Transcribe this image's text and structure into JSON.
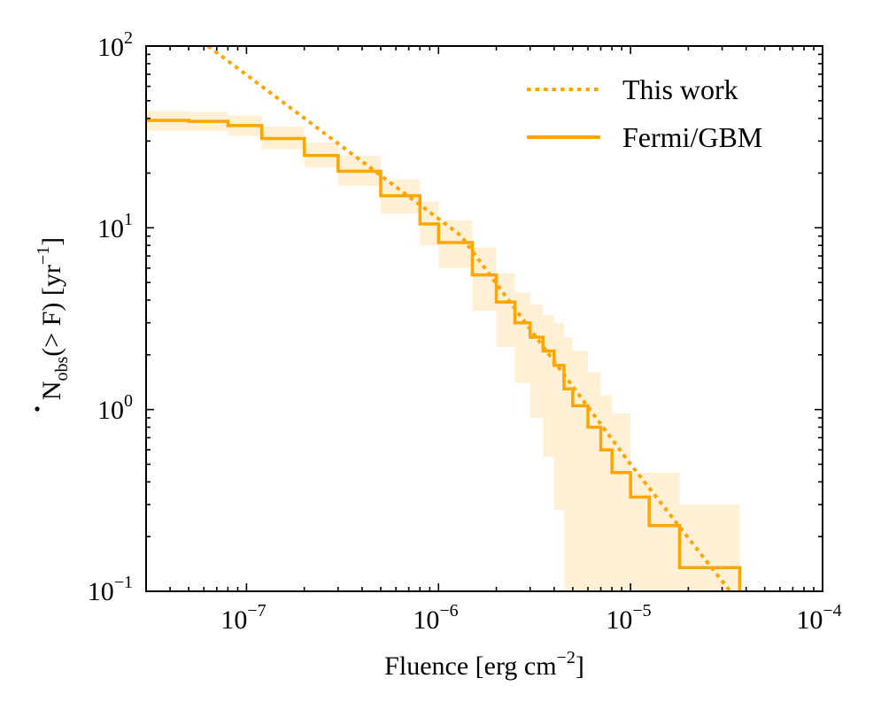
{
  "chart_data": {
    "type": "line",
    "scale": {
      "x": "log",
      "y": "log"
    },
    "xlim": [
      3e-08,
      0.0001
    ],
    "ylim": [
      0.1,
      100
    ],
    "xlabel": {
      "text": "Fluence [erg cm",
      "sup": "−2",
      "end": "]"
    },
    "ylabel": {
      "N": "N",
      "sub": "obs",
      "mid": "(> F) [yr",
      "sup": "−1",
      "end": "]"
    },
    "x_ticks": [
      {
        "value": 1e-07,
        "base": "10",
        "exp": "−7"
      },
      {
        "value": 1e-06,
        "base": "10",
        "exp": "−6"
      },
      {
        "value": 1e-05,
        "base": "10",
        "exp": "−5"
      },
      {
        "value": 0.0001,
        "base": "10",
        "exp": "−4"
      }
    ],
    "y_ticks": [
      {
        "value": 0.1,
        "base": "10",
        "exp": "−1"
      },
      {
        "value": 1,
        "base": "10",
        "exp": "0"
      },
      {
        "value": 10,
        "base": "10",
        "exp": "1"
      },
      {
        "value": 100,
        "base": "10",
        "exp": "2"
      }
    ],
    "color": "#FFA500",
    "band_color": "#FFF0D6",
    "series": [
      {
        "name": "This work",
        "style": "dotted",
        "x": [
          6.3e-08,
          1.3e-06,
          1e-05,
          3.3e-05
        ],
        "y": [
          100,
          9.1,
          0.5,
          0.1
        ]
      },
      {
        "name": "Fermi/GBM",
        "style": "solid-step",
        "x": [
          3e-08,
          5e-08,
          8e-08,
          1.2e-07,
          2e-07,
          3e-07,
          5e-07,
          8e-07,
          1e-06,
          1.5e-06,
          2e-06,
          2.5e-06,
          3e-06,
          3.5e-06,
          4e-06,
          4.5e-06,
          5e-06,
          6e-06,
          7e-06,
          8e-06,
          1e-05,
          1.25e-05,
          1.8e-05,
          3.7e-05
        ],
        "y": [
          39,
          38.5,
          36.5,
          31,
          25,
          20.5,
          15,
          10.5,
          8.3,
          5.5,
          3.9,
          3.0,
          2.5,
          2.1,
          1.75,
          1.3,
          1.05,
          0.8,
          0.6,
          0.45,
          0.33,
          0.23,
          0.135,
          0.135
        ],
        "band_low": [
          34,
          34,
          32,
          27,
          21.5,
          17,
          12,
          8,
          6,
          3.5,
          2.2,
          1.4,
          0.9,
          0.55,
          0.28,
          0.1,
          0.1,
          0.1,
          0.1,
          0.1,
          0.1,
          0.1,
          0.1,
          0.1
        ],
        "band_high": [
          44,
          43.5,
          41.5,
          36,
          29.5,
          25,
          18.5,
          14,
          11,
          7.8,
          5.6,
          4.4,
          3.8,
          3.3,
          3.0,
          2.5,
          2.1,
          1.6,
          1.2,
          0.95,
          0.45,
          0.45,
          0.3,
          0.3
        ]
      }
    ],
    "legend_position": "top-right"
  }
}
